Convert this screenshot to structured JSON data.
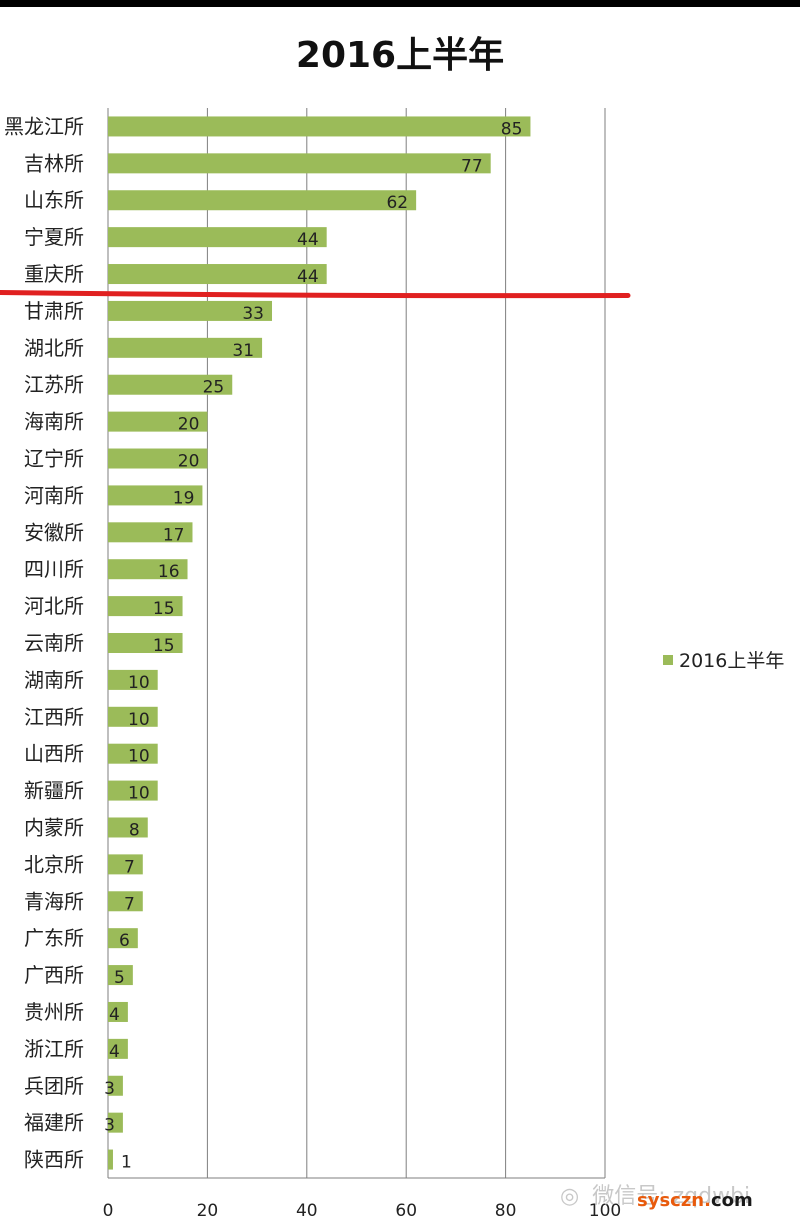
{
  "colors": {
    "bar": "#9bbb59",
    "grid": "#7f7f7f",
    "marker": "#e02020"
  },
  "legend": {
    "label": "2016上半年"
  },
  "watermark": {
    "icon": "wechat-icon",
    "text": "微信号: zqdwbi"
  },
  "site": {
    "text": "sysczn",
    "dot": ".",
    "com": "com"
  },
  "chart_data": {
    "type": "bar",
    "orientation": "horizontal",
    "title": "2016上半年",
    "categories": [
      "黑龙江所",
      "吉林所",
      "山东所",
      "宁夏所",
      "重庆所",
      "甘肃所",
      "湖北所",
      "江苏所",
      "海南所",
      "辽宁所",
      "河南所",
      "安徽所",
      "四川所",
      "河北所",
      "云南所",
      "湖南所",
      "江西所",
      "山西所",
      "新疆所",
      "内蒙所",
      "北京所",
      "青海所",
      "广东所",
      "广西所",
      "贵州所",
      "浙江所",
      "兵团所",
      "福建所",
      "陕西所"
    ],
    "series": [
      {
        "name": "2016上半年",
        "values": [
          85,
          77,
          62,
          44,
          44,
          33,
          31,
          25,
          20,
          20,
          19,
          17,
          16,
          15,
          15,
          10,
          10,
          10,
          10,
          8,
          7,
          7,
          6,
          5,
          4,
          4,
          3,
          3,
          1
        ]
      }
    ],
    "xlim": [
      0,
      100
    ],
    "xticks": [
      0,
      20,
      40,
      60,
      80,
      100
    ],
    "grid": true,
    "legend_position": "right",
    "data_labels": true,
    "annotation": "red horizontal line between 重庆所 and 甘肃所"
  }
}
